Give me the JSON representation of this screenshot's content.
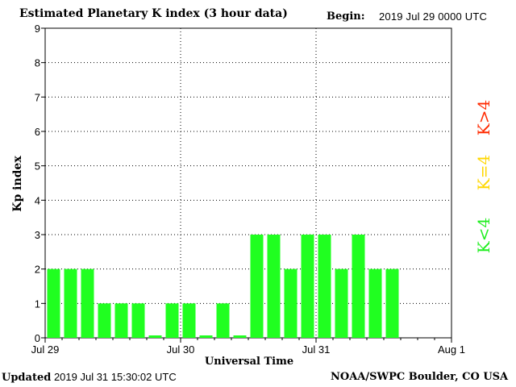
{
  "header": {
    "title": "Estimated Planetary K index (3 hour data)",
    "begin_label": "Begin:",
    "begin_value": "2019 Jul 29 0000 UTC"
  },
  "footer": {
    "updated_label": "Updated",
    "updated_value": "2019 Jul 31 15:30:02 UTC",
    "source": "NOAA/SWPC Boulder, CO USA"
  },
  "legend": [
    {
      "label": "K<4",
      "color": "#20ee20"
    },
    {
      "label": "K=4",
      "color": "#ffd700"
    },
    {
      "label": "K>4",
      "color": "#ff2a00"
    }
  ],
  "chart_data": {
    "type": "bar",
    "title": "Estimated Planetary K index (3 hour data)",
    "xlabel": "Universal Time",
    "ylabel": "Kp index",
    "ylim": [
      0,
      9
    ],
    "yticks": [
      0,
      1,
      2,
      3,
      4,
      5,
      6,
      7,
      8,
      9
    ],
    "xticks": [
      "Jul 29",
      "Jul 30",
      "Jul 31",
      "Aug 1"
    ],
    "interval_hours": 3,
    "slots_total": 24,
    "grid": true,
    "bar_color": "#20ff20",
    "values": [
      2,
      2,
      2,
      1,
      1,
      1,
      0.07,
      1,
      1,
      0.07,
      1,
      0.07,
      3,
      3,
      2,
      3,
      3,
      2,
      3,
      2,
      2
    ]
  }
}
